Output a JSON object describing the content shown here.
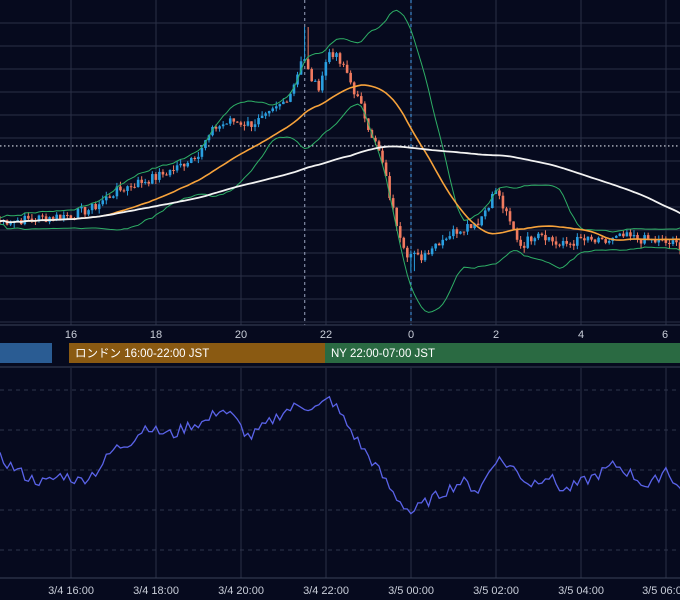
{
  "colors": {
    "background": "#060a1e",
    "grid": "#2a3046",
    "grid_dashed": "#2f354c",
    "candle_up": "#2a9fe0",
    "candle_down": "#f07a5f",
    "bollinger": "#2eaf66",
    "moving_average_orange": "#f7a23b",
    "moving_average_white": "#f2f2f2",
    "oscillator": "#5a63e8",
    "session_tokyo": "#2a5c93",
    "session_london": "#8a5a12",
    "session_ny": "#2a6a42",
    "crosshair": "#9aa4bf",
    "marker_blue": "#4aa3f0"
  },
  "price_axis_ticks": [
    "16",
    "18",
    "20",
    "22",
    "0",
    "2",
    "4",
    "6"
  ],
  "session_bars": [
    {
      "id": "tokyo",
      "label": ""
    },
    {
      "id": "london",
      "label": "ロンドン 16:00-22:00 JST"
    },
    {
      "id": "ny",
      "label": "NY 22:00-07:00 JST"
    }
  ],
  "oscillator_axis_ticks": [
    "3/4 16:00",
    "3/4 18:00",
    "3/4 20:00",
    "3/4 22:00",
    "3/5 00:00",
    "3/5 02:00",
    "3/5 04:00",
    "3/5 06:00"
  ],
  "chart_data": [
    {
      "type": "candlestick",
      "title": "",
      "x_unit": "hour (JST), 3/4 14:20 to 3/5 06:30",
      "x_range": [
        14.33,
        30.5
      ],
      "ylim": [
        0,
        100
      ],
      "y_note": "price axis values not printed; relative scale 0-100",
      "grid": true,
      "indicators": [
        "bollinger_bands",
        "moving_average_orange",
        "moving_average_white",
        "horizontal_dotted_level"
      ],
      "horizontal_level": 62,
      "vertical_markers": [
        {
          "x": 21.5,
          "style": "dashed"
        },
        {
          "x": 24.0,
          "style": "dashed-blue"
        }
      ],
      "anchor_points_close": [
        [
          14.33,
          38
        ],
        [
          15.0,
          38.5
        ],
        [
          16.0,
          40
        ],
        [
          16.5,
          42
        ],
        [
          17.0,
          47
        ],
        [
          17.5,
          50
        ],
        [
          18.0,
          52
        ],
        [
          18.5,
          55
        ],
        [
          19.0,
          60
        ],
        [
          19.4,
          68
        ],
        [
          19.8,
          70
        ],
        [
          20.2,
          69
        ],
        [
          20.6,
          71
        ],
        [
          21.0,
          76
        ],
        [
          21.2,
          80
        ],
        [
          21.45,
          91
        ],
        [
          21.6,
          85
        ],
        [
          21.8,
          80
        ],
        [
          22.1,
          93
        ],
        [
          22.5,
          85
        ],
        [
          22.9,
          72
        ],
        [
          23.3,
          58
        ],
        [
          23.6,
          40
        ],
        [
          23.9,
          28
        ],
        [
          24.2,
          26
        ],
        [
          24.5,
          30
        ],
        [
          24.8,
          33
        ],
        [
          25.2,
          36
        ],
        [
          25.6,
          38
        ],
        [
          26.0,
          48
        ],
        [
          26.3,
          38
        ],
        [
          26.6,
          30
        ],
        [
          27.0,
          35
        ],
        [
          27.5,
          30
        ],
        [
          28.0,
          32
        ],
        [
          28.5,
          31
        ],
        [
          29.0,
          33
        ],
        [
          29.5,
          32
        ],
        [
          30.0,
          31
        ],
        [
          30.5,
          30
        ]
      ],
      "wick_extremes": {
        "max_high": 100,
        "min_low": 22
      }
    },
    {
      "type": "line",
      "title": "",
      "x": "time (JST)",
      "x_ticks": [
        "3/4 16:00",
        "3/4 18:00",
        "3/4 20:00",
        "3/4 22:00",
        "3/5 00:00",
        "3/5 02:00",
        "3/5 04:00",
        "3/5 06:00"
      ],
      "x_range": [
        14.33,
        30.5
      ],
      "ylim": [
        0,
        100
      ],
      "y_note": "oscillator values not printed; relative scale 0-100",
      "grid": true,
      "series": [
        {
          "anchor_points": [
            [
              14.33,
              50
            ],
            [
              14.6,
              45
            ],
            [
              15.0,
              38
            ],
            [
              15.4,
              35
            ],
            [
              15.8,
              40
            ],
            [
              16.2,
              36
            ],
            [
              16.6,
              42
            ],
            [
              17.0,
              55
            ],
            [
              17.4,
              60
            ],
            [
              17.8,
              70
            ],
            [
              18.0,
              66
            ],
            [
              18.4,
              64
            ],
            [
              18.8,
              70
            ],
            [
              19.2,
              72
            ],
            [
              19.5,
              80
            ],
            [
              19.8,
              75
            ],
            [
              20.2,
              62
            ],
            [
              20.6,
              70
            ],
            [
              21.0,
              78
            ],
            [
              21.4,
              82
            ],
            [
              21.8,
              80
            ],
            [
              22.1,
              86
            ],
            [
              22.4,
              74
            ],
            [
              22.8,
              58
            ],
            [
              23.2,
              44
            ],
            [
              23.6,
              28
            ],
            [
              24.0,
              17
            ],
            [
              24.4,
              24
            ],
            [
              24.8,
              30
            ],
            [
              25.2,
              36
            ],
            [
              25.6,
              30
            ],
            [
              26.0,
              50
            ],
            [
              26.4,
              44
            ],
            [
              26.8,
              34
            ],
            [
              27.2,
              40
            ],
            [
              27.6,
              30
            ],
            [
              28.0,
              35
            ],
            [
              28.4,
              40
            ],
            [
              28.8,
              46
            ],
            [
              29.2,
              40
            ],
            [
              29.6,
              32
            ],
            [
              30.0,
              44
            ],
            [
              30.5,
              24
            ]
          ]
        }
      ]
    }
  ]
}
